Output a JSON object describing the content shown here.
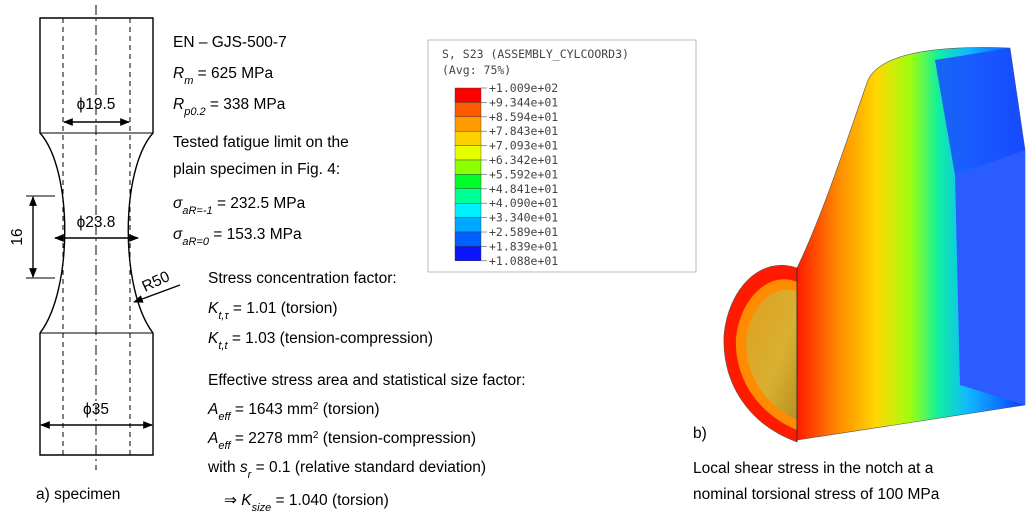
{
  "specimen": {
    "dims": [
      "ϕ19.5",
      "ϕ23.8",
      "ϕ35",
      "16",
      "R50"
    ],
    "caption": "a) specimen"
  },
  "text_lines": [
    [
      "EN – GJS-500-7"
    ],
    [
      {
        "i": "R"
      },
      {
        "sub": "m"
      },
      " = 625 MPa"
    ],
    [
      {
        "i": "R"
      },
      {
        "sub": "p0.2"
      },
      " = 338 MPa"
    ],
    [
      "Tested fatigue limit on the"
    ],
    [
      "plain specimen in Fig. 4:"
    ],
    [
      {
        "i": "σ"
      },
      {
        "sub": "aR=-1"
      },
      " = 232.5 MPa"
    ],
    [
      {
        "i": "σ"
      },
      {
        "sub": "aR=0"
      },
      " = 153.3 MPa"
    ],
    [
      "Stress concentration factor:"
    ],
    [
      {
        "i": "K"
      },
      {
        "sub": "t,τ"
      },
      " = 1.01  (torsion)"
    ],
    [
      {
        "i": "K"
      },
      {
        "sub": "t,t"
      },
      " = 1.03  (tension-compression)"
    ],
    [
      "Effective stress area and statistical size factor:"
    ],
    [
      {
        "i": "A"
      },
      {
        "sub": "eff"
      },
      " = 1643 mm",
      {
        "sup": "2"
      },
      " (torsion)"
    ],
    [
      {
        "i": "A"
      },
      {
        "sub": "eff"
      },
      " = 2278 mm",
      {
        "sup": "2"
      },
      " (tension-compression)"
    ],
    [
      "with ",
      {
        "i": "s"
      },
      {
        "sub": "r"
      },
      " = 0.1 (relative standard deviation)"
    ],
    [
      "⇒ ",
      {
        "i": "K"
      },
      {
        "sub": "size"
      },
      " = 1.040 (torsion)"
    ]
  ],
  "legend": {
    "title": "S, S23 (ASSEMBLY_CYLCOORD3)",
    "subtitle": "(Avg: 75%)",
    "labels": [
      "+1.009e+02",
      "+9.344e+01",
      "+8.594e+01",
      "+7.843e+01",
      "+7.093e+01",
      "+6.342e+01",
      "+5.592e+01",
      "+4.841e+01",
      "+4.090e+01",
      "+3.340e+01",
      "+2.589e+01",
      "+1.839e+01",
      "+1.088e+01"
    ],
    "colors": [
      "#ff0000",
      "#ff5a00",
      "#ff9a00",
      "#ffd000",
      "#e6ff00",
      "#8cff00",
      "#00ff2a",
      "#00ff96",
      "#00f0ff",
      "#00a8ff",
      "#0060ff",
      "#0a14ff"
    ]
  },
  "figure_b": {
    "label": "b)",
    "caption": [
      "Local shear stress in the notch at a",
      "nominal torsional stress of 100 MPa"
    ]
  }
}
